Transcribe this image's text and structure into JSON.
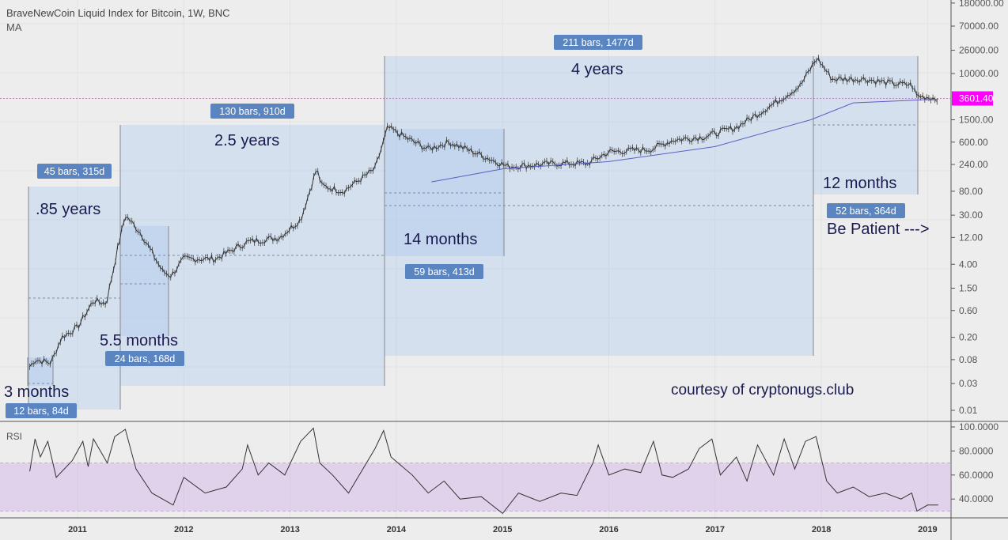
{
  "header": {
    "title": "BraveNewCoin Liquid Index for Bitcoin, 1W, BNC",
    "indicator": "MA",
    "rsi_label": "RSI"
  },
  "chart_data": [
    {
      "type": "line",
      "title": "BraveNewCoin Liquid Index for Bitcoin, 1W, BNC",
      "scale": "log",
      "ylim": [
        0.01,
        180000
      ],
      "y_ticks": [
        "180000.00",
        "70000.00",
        "26000.00",
        "10000.00",
        "1500.00",
        "600.00",
        "240.00",
        "80.00",
        "30.00",
        "12.00",
        "4.00",
        "1.50",
        "0.60",
        "0.20",
        "0.08",
        "0.03",
        "0.01"
      ],
      "x_ticks": [
        "2011",
        "2012",
        "2013",
        "2014",
        "2015",
        "2016",
        "2017",
        "2018",
        "2019"
      ],
      "last_price": "3601.40",
      "last_price_color": "#ff00ff",
      "series": [
        {
          "values": [
            [
              2010.55,
              0.06
            ],
            [
              2010.6,
              0.08
            ],
            [
              2010.75,
              0.07
            ],
            [
              2010.85,
              0.2
            ],
            [
              2011.0,
              0.3
            ],
            [
              2011.15,
              0.9
            ],
            [
              2011.27,
              0.8
            ],
            [
              2011.38,
              8
            ],
            [
              2011.45,
              30
            ],
            [
              2011.6,
              14
            ],
            [
              2011.8,
              3
            ],
            [
              2011.88,
              2.5
            ],
            [
              2012.0,
              5
            ],
            [
              2012.3,
              5
            ],
            [
              2012.6,
              10
            ],
            [
              2012.9,
              12
            ],
            [
              2013.1,
              25
            ],
            [
              2013.25,
              200
            ],
            [
              2013.3,
              100
            ],
            [
              2013.5,
              80
            ],
            [
              2013.8,
              200
            ],
            [
              2013.92,
              1100
            ],
            [
              2014.1,
              700
            ],
            [
              2014.3,
              450
            ],
            [
              2014.5,
              600
            ],
            [
              2014.8,
              350
            ],
            [
              2015.05,
              220
            ],
            [
              2015.5,
              250
            ],
            [
              2015.8,
              250
            ],
            [
              2016.0,
              400
            ],
            [
              2016.4,
              450
            ],
            [
              2016.6,
              650
            ],
            [
              2016.9,
              750
            ],
            [
              2017.2,
              1100
            ],
            [
              2017.5,
              2500
            ],
            [
              2017.8,
              6000
            ],
            [
              2017.96,
              19000
            ],
            [
              2018.1,
              8000
            ],
            [
              2018.4,
              8000
            ],
            [
              2018.7,
              6500
            ],
            [
              2018.85,
              6300
            ],
            [
              2018.9,
              4000
            ],
            [
              2019.1,
              3600
            ]
          ]
        },
        {
          "name": "MA",
          "color": "#5a5fc4",
          "values": [
            [
              2014.33,
              117
            ],
            [
              2015.0,
              200
            ],
            [
              2016.0,
              270
            ],
            [
              2017.0,
              500
            ],
            [
              2017.9,
              1500
            ],
            [
              2018.3,
              3000
            ],
            [
              2019.1,
              3500
            ]
          ]
        }
      ],
      "annotations": {
        "ranges": [
          "12 bars, 84d",
          "45 bars, 315d",
          "24 bars, 168d",
          "130 bars, 910d",
          "59 bars, 413d",
          "211 bars, 1477d",
          "52 bars, 364d"
        ],
        "texts": [
          "3 months",
          ".85 years",
          "5.5 months",
          "2.5 years",
          "14 months",
          "4 years",
          "12 months",
          "Be Patient --->",
          "courtesy of cryptonugs.club"
        ]
      }
    },
    {
      "type": "line",
      "title": "RSI",
      "ylim": [
        25,
        100
      ],
      "band": [
        30,
        70
      ],
      "y_ticks": [
        "100.0000",
        "80.0000",
        "60.0000",
        "40.0000"
      ],
      "values": [
        [
          2010.55,
          63
        ],
        [
          2010.6,
          90
        ],
        [
          2010.65,
          75
        ],
        [
          2010.72,
          88
        ],
        [
          2010.8,
          58
        ],
        [
          2010.95,
          72
        ],
        [
          2011.05,
          88
        ],
        [
          2011.1,
          67
        ],
        [
          2011.15,
          90
        ],
        [
          2011.28,
          70
        ],
        [
          2011.35,
          92
        ],
        [
          2011.45,
          98
        ],
        [
          2011.55,
          65
        ],
        [
          2011.7,
          45
        ],
        [
          2011.9,
          35
        ],
        [
          2012.0,
          58
        ],
        [
          2012.2,
          45
        ],
        [
          2012.4,
          50
        ],
        [
          2012.55,
          65
        ],
        [
          2012.6,
          85
        ],
        [
          2012.7,
          60
        ],
        [
          2012.8,
          70
        ],
        [
          2012.95,
          60
        ],
        [
          2013.1,
          88
        ],
        [
          2013.22,
          99
        ],
        [
          2013.28,
          70
        ],
        [
          2013.4,
          60
        ],
        [
          2013.55,
          45
        ],
        [
          2013.8,
          82
        ],
        [
          2013.88,
          97
        ],
        [
          2013.95,
          75
        ],
        [
          2014.15,
          60
        ],
        [
          2014.3,
          45
        ],
        [
          2014.45,
          55
        ],
        [
          2014.6,
          40
        ],
        [
          2014.8,
          42
        ],
        [
          2015.0,
          28
        ],
        [
          2015.15,
          45
        ],
        [
          2015.35,
          38
        ],
        [
          2015.55,
          45
        ],
        [
          2015.7,
          43
        ],
        [
          2015.85,
          70
        ],
        [
          2015.9,
          85
        ],
        [
          2016.0,
          60
        ],
        [
          2016.15,
          65
        ],
        [
          2016.3,
          62
        ],
        [
          2016.42,
          88
        ],
        [
          2016.5,
          60
        ],
        [
          2016.6,
          58
        ],
        [
          2016.75,
          65
        ],
        [
          2016.85,
          82
        ],
        [
          2016.97,
          90
        ],
        [
          2017.05,
          60
        ],
        [
          2017.2,
          75
        ],
        [
          2017.3,
          55
        ],
        [
          2017.4,
          85
        ],
        [
          2017.55,
          60
        ],
        [
          2017.65,
          90
        ],
        [
          2017.75,
          65
        ],
        [
          2017.85,
          88
        ],
        [
          2017.95,
          92
        ],
        [
          2018.05,
          55
        ],
        [
          2018.15,
          45
        ],
        [
          2018.3,
          50
        ],
        [
          2018.45,
          42
        ],
        [
          2018.6,
          45
        ],
        [
          2018.75,
          40
        ],
        [
          2018.85,
          45
        ],
        [
          2018.9,
          30
        ],
        [
          2019.0,
          35
        ],
        [
          2019.1,
          35
        ]
      ]
    }
  ]
}
